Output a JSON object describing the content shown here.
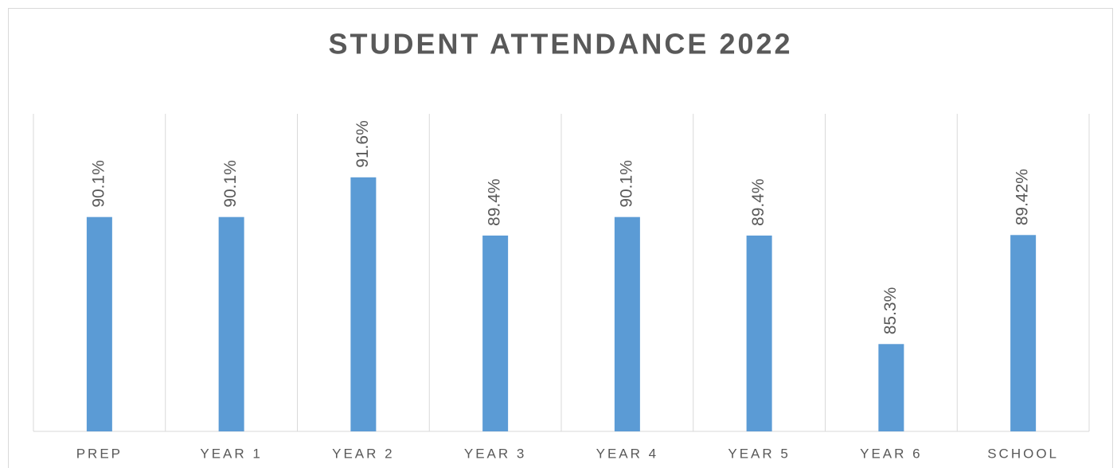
{
  "chart_data": {
    "type": "bar",
    "title": "STUDENT ATTENDANCE 2022",
    "categories": [
      "PREP",
      "YEAR 1",
      "YEAR 2",
      "YEAR 3",
      "YEAR 4",
      "YEAR 5",
      "YEAR 6",
      "SCHOOL"
    ],
    "values": [
      90.1,
      90.1,
      91.6,
      89.4,
      90.1,
      89.4,
      85.3,
      89.42
    ],
    "value_labels": [
      "90.1%",
      "90.1%",
      "91.6%",
      "89.4%",
      "90.1%",
      "89.4%",
      "85.3%",
      "89.42%"
    ],
    "color": "#5b9bd5",
    "ylim": [
      82,
      94
    ]
  }
}
